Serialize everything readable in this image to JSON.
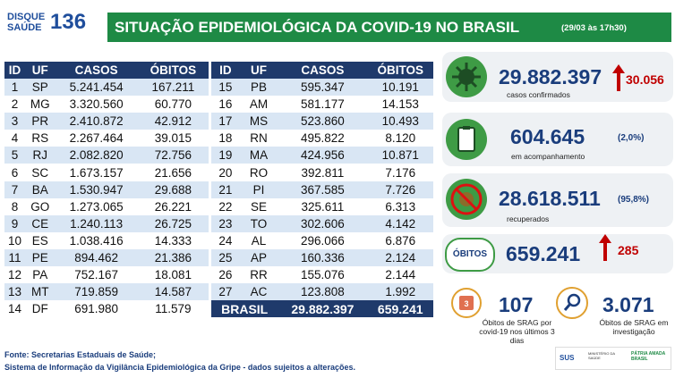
{
  "header": {
    "logo_line1": "DISQUE",
    "logo_line2": "SAÚDE",
    "logo_number": "136",
    "title": "SITUAÇÃO EPIDEMIOLÓGICA DA COVID-19 NO BRASIL",
    "subtitle": "(29/03 às 17h30)"
  },
  "tables": [
    {
      "columns": [
        "ID",
        "UF",
        "CASOS",
        "ÓBITOS"
      ],
      "rows": [
        [
          "1",
          "SP",
          "5.241.454",
          "167.211"
        ],
        [
          "2",
          "MG",
          "3.320.560",
          "60.770"
        ],
        [
          "3",
          "PR",
          "2.410.872",
          "42.912"
        ],
        [
          "4",
          "RS",
          "2.267.464",
          "39.015"
        ],
        [
          "5",
          "RJ",
          "2.082.820",
          "72.756"
        ],
        [
          "6",
          "SC",
          "1.673.157",
          "21.656"
        ],
        [
          "7",
          "BA",
          "1.530.947",
          "29.688"
        ],
        [
          "8",
          "GO",
          "1.273.065",
          "26.221"
        ],
        [
          "9",
          "CE",
          "1.240.113",
          "26.725"
        ],
        [
          "10",
          "ES",
          "1.038.416",
          "14.333"
        ],
        [
          "11",
          "PE",
          "894.462",
          "21.386"
        ],
        [
          "12",
          "PA",
          "752.167",
          "18.081"
        ],
        [
          "13",
          "MT",
          "719.859",
          "14.587"
        ],
        [
          "14",
          "DF",
          "691.980",
          "11.579"
        ]
      ]
    },
    {
      "columns": [
        "ID",
        "UF",
        "CASOS",
        "ÓBITOS"
      ],
      "rows": [
        [
          "15",
          "PB",
          "595.347",
          "10.191"
        ],
        [
          "16",
          "AM",
          "581.177",
          "14.153"
        ],
        [
          "17",
          "MS",
          "523.860",
          "10.493"
        ],
        [
          "18",
          "RN",
          "495.822",
          "8.120"
        ],
        [
          "19",
          "MA",
          "424.956",
          "10.871"
        ],
        [
          "20",
          "RO",
          "392.811",
          "7.176"
        ],
        [
          "21",
          "PI",
          "367.585",
          "7.726"
        ],
        [
          "22",
          "SE",
          "325.611",
          "6.313"
        ],
        [
          "23",
          "TO",
          "302.606",
          "4.142"
        ],
        [
          "24",
          "AL",
          "296.066",
          "6.876"
        ],
        [
          "25",
          "AP",
          "160.336",
          "2.124"
        ],
        [
          "26",
          "RR",
          "155.076",
          "2.144"
        ],
        [
          "27",
          "AC",
          "123.808",
          "1.992"
        ]
      ],
      "total": [
        "BRASIL",
        "29.882.397",
        "659.241"
      ]
    }
  ],
  "stats": {
    "confirmed": {
      "value": "29.882.397",
      "new": "30.056",
      "label": "casos confirmados"
    },
    "monitoring": {
      "value": "604.645",
      "percent": "(2,0%)",
      "label": "em acompanhamento"
    },
    "recovered": {
      "value": "28.618.511",
      "percent": "(95,8%)",
      "label": "recuperados"
    },
    "deaths": {
      "badge": "ÓBITOS",
      "value": "659.241",
      "new": "285"
    },
    "srag_recent": {
      "icon": "3",
      "value": "107",
      "label": "Óbitos de SRAG por covid-19 nos últimos 3 dias"
    },
    "srag_investigation": {
      "value": "3.071",
      "label": "Óbitos de SRAG em investigação"
    }
  },
  "footer": {
    "lines": [
      "Fonte: Secretarias Estaduais de Saúde;",
      "Sistema de Informação da Vigilância Epidemiológica da Gripe - dados sujeitos a alterações."
    ]
  },
  "logos": {
    "sus": "SUS",
    "ministry": "MINISTÉRIO DA SAÚDE",
    "government": "PÁTRIA AMADA BRASIL"
  }
}
